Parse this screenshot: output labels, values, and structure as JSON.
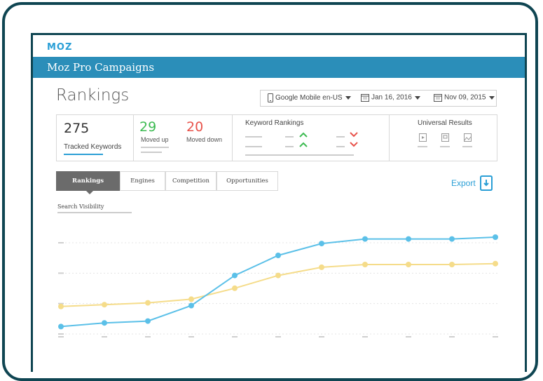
{
  "app": {
    "logo": "MOZ",
    "campaign_bar": "Moz Pro Campaigns"
  },
  "page": {
    "title": "Rankings"
  },
  "filters": {
    "engine": "Google Mobile en-US",
    "date_start": "Jan 16, 2016",
    "date_end": "Nov 09, 2015"
  },
  "stats": {
    "tracked_value": "275",
    "tracked_label": "Tracked Keywords",
    "moved_up_value": "29",
    "moved_up_label": "Moved up",
    "moved_down_value": "20",
    "moved_down_label": "Moved down",
    "keyword_rankings_label": "Keyword Rankings",
    "universal_results_label": "Universal Results"
  },
  "tabs": [
    {
      "label": "Rankings",
      "active": true
    },
    {
      "label": "Engines",
      "active": false
    },
    {
      "label": "Competition",
      "active": false
    },
    {
      "label": "Opportunities",
      "active": false
    }
  ],
  "export_label": "Export",
  "chart_title": "Search Visibility",
  "colors": {
    "brand": "#2b8eb9",
    "up": "#3dbb52",
    "down": "#e8534b",
    "blue_series": "#5bc0e8",
    "yellow_series": "#f5dc8a"
  },
  "chart_data": {
    "type": "line",
    "title": "Search Visibility",
    "points": 11,
    "ylim": [
      0,
      100
    ],
    "grid": true,
    "series": [
      {
        "values": [
          2,
          6,
          8,
          25,
          58,
          80,
          93,
          98,
          98,
          98,
          100
        ]
      },
      {
        "values": [
          24,
          26,
          28,
          32,
          44,
          58,
          67,
          70,
          70,
          70,
          71
        ]
      }
    ]
  }
}
